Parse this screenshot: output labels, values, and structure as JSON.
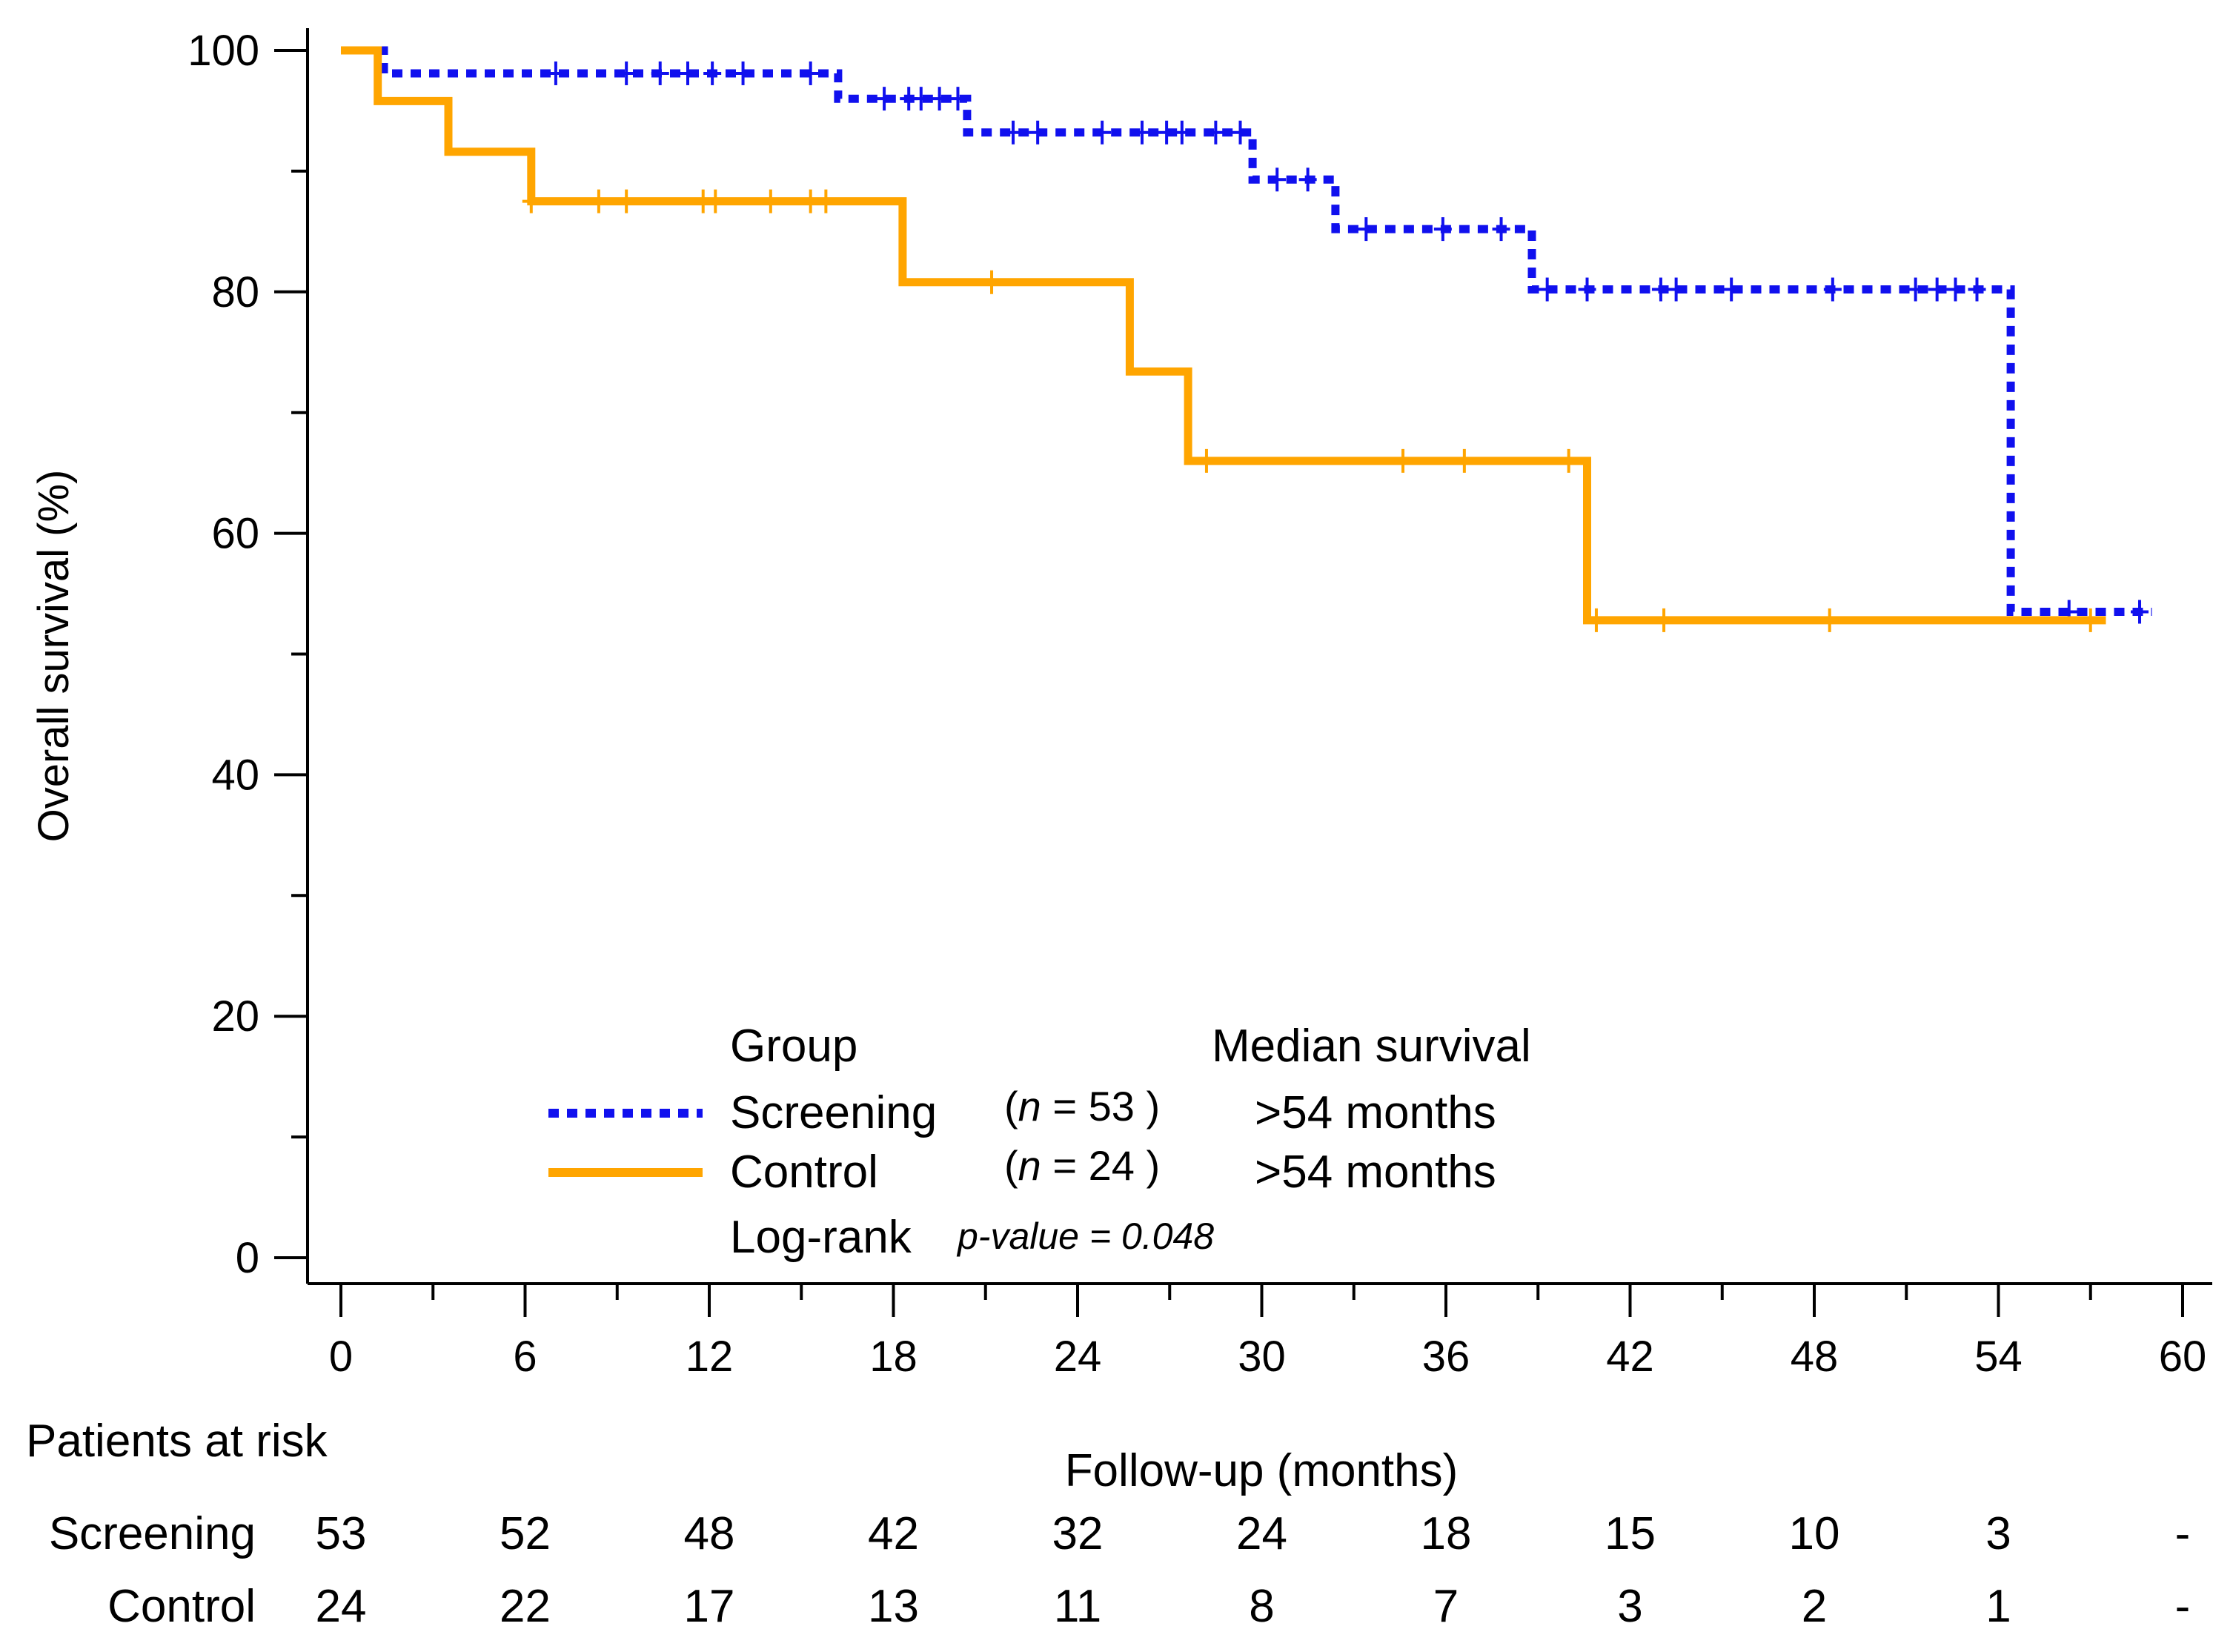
{
  "chart_data": {
    "type": "line",
    "subtype": "kaplan-meier",
    "xlabel": "Follow-up (months)",
    "ylabel": "Overall survival (%)",
    "xlim": [
      0,
      60
    ],
    "ylim": [
      0,
      100
    ],
    "xticks": [
      0,
      6,
      12,
      18,
      24,
      30,
      36,
      42,
      48,
      54,
      60
    ],
    "yticks": [
      0,
      20,
      40,
      60,
      80,
      100
    ],
    "grid": false,
    "series": [
      {
        "name": "Screening",
        "color": "#1010ee",
        "style": "dotted",
        "steps": [
          [
            0,
            100
          ],
          [
            1.4,
            100
          ],
          [
            1.4,
            98.1
          ],
          [
            16.2,
            98.1
          ],
          [
            16.2,
            96.0
          ],
          [
            20.4,
            96.0
          ],
          [
            20.4,
            93.2
          ],
          [
            29.7,
            93.2
          ],
          [
            29.7,
            89.3
          ],
          [
            32.4,
            89.3
          ],
          [
            32.4,
            85.2
          ],
          [
            38.8,
            85.2
          ],
          [
            38.8,
            80.2
          ],
          [
            54.4,
            80.2
          ],
          [
            54.4,
            53.5
          ],
          [
            59.0,
            53.5
          ]
        ],
        "censored": [
          [
            7.0,
            98.1
          ],
          [
            9.3,
            98.1
          ],
          [
            10.4,
            98.1
          ],
          [
            11.3,
            98.1
          ],
          [
            12.1,
            98.1
          ],
          [
            13.1,
            98.1
          ],
          [
            15.3,
            98.1
          ],
          [
            17.7,
            96.0
          ],
          [
            18.5,
            96.0
          ],
          [
            18.9,
            96.0
          ],
          [
            19.5,
            96.0
          ],
          [
            20.1,
            96.0
          ],
          [
            21.9,
            93.2
          ],
          [
            22.7,
            93.2
          ],
          [
            24.8,
            93.2
          ],
          [
            26.1,
            93.2
          ],
          [
            26.9,
            93.2
          ],
          [
            27.4,
            93.2
          ],
          [
            28.5,
            93.2
          ],
          [
            29.3,
            93.2
          ],
          [
            30.5,
            89.3
          ],
          [
            31.5,
            89.3
          ],
          [
            33.4,
            85.2
          ],
          [
            35.9,
            85.2
          ],
          [
            37.8,
            85.2
          ],
          [
            39.3,
            80.2
          ],
          [
            40.6,
            80.2
          ],
          [
            43.0,
            80.2
          ],
          [
            43.5,
            80.2
          ],
          [
            45.3,
            80.2
          ],
          [
            48.6,
            80.2
          ],
          [
            51.3,
            80.2
          ],
          [
            52.0,
            80.2
          ],
          [
            52.6,
            80.2
          ],
          [
            53.3,
            80.2
          ],
          [
            56.3,
            53.5
          ],
          [
            58.6,
            53.5
          ]
        ]
      },
      {
        "name": "Control",
        "color": "#ffa500",
        "style": "solid",
        "steps": [
          [
            0,
            100
          ],
          [
            1.2,
            100
          ],
          [
            1.2,
            95.8
          ],
          [
            3.5,
            95.8
          ],
          [
            3.5,
            91.6
          ],
          [
            6.2,
            91.6
          ],
          [
            6.2,
            87.5
          ],
          [
            18.3,
            87.5
          ],
          [
            18.3,
            80.8
          ],
          [
            25.7,
            80.8
          ],
          [
            25.7,
            73.4
          ],
          [
            27.6,
            73.4
          ],
          [
            27.6,
            66.0
          ],
          [
            40.6,
            66.0
          ],
          [
            40.6,
            52.8
          ],
          [
            57.5,
            52.8
          ]
        ],
        "censored": [
          [
            6.2,
            87.5
          ],
          [
            8.4,
            87.5
          ],
          [
            9.3,
            87.5
          ],
          [
            11.8,
            87.5
          ],
          [
            12.2,
            87.5
          ],
          [
            14.0,
            87.5
          ],
          [
            15.3,
            87.5
          ],
          [
            15.8,
            87.5
          ],
          [
            21.2,
            80.8
          ],
          [
            28.2,
            66.0
          ],
          [
            34.6,
            66.0
          ],
          [
            36.6,
            66.0
          ],
          [
            40.0,
            66.0
          ],
          [
            40.9,
            52.8
          ],
          [
            43.1,
            52.8
          ],
          [
            48.5,
            52.8
          ],
          [
            57.0,
            52.8
          ]
        ]
      }
    ],
    "legend": {
      "position": "bottom-center",
      "title": "Group",
      "median_header": "Median survival",
      "entries": [
        {
          "label": "Screening",
          "n_text": "n",
          "n_equals": " = 53 )",
          "median": ">54 months"
        },
        {
          "label": "Control",
          "n_text": "n",
          "n_equals": " = 24 )",
          "median": ">54 months"
        }
      ],
      "n_open": "(",
      "logrank_label": "Log-rank",
      "pvalue_text": "p-value = 0.048"
    },
    "risk_table": {
      "title": "Patients at risk",
      "times": [
        0,
        6,
        12,
        18,
        24,
        30,
        36,
        42,
        48,
        54,
        60
      ],
      "rows": [
        {
          "label": "Screening",
          "values": [
            "53",
            "52",
            "48",
            "42",
            "32",
            "24",
            "18",
            "15",
            "10",
            "3",
            "-"
          ]
        },
        {
          "label": "Control",
          "values": [
            "24",
            "22",
            "17",
            "13",
            "11",
            "8",
            "7",
            "3",
            "2",
            "1",
            "-"
          ]
        }
      ]
    }
  }
}
